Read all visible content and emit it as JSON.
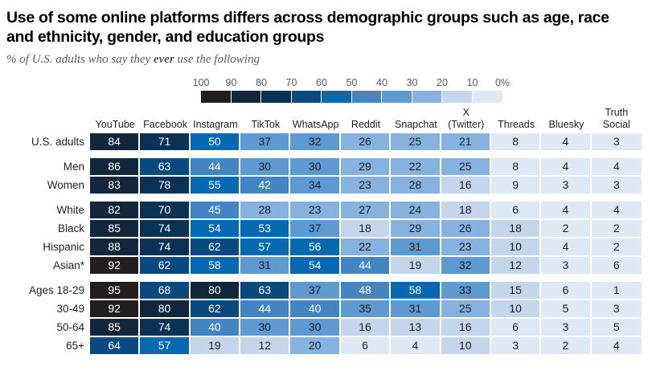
{
  "title": "Use of some online platforms differs across demographic groups such as age, race\nand ethnicity, gender, and education groups",
  "subtitle": {
    "prefix": "% of U.S. adults who say they ",
    "emphasis": "ever",
    "suffix": " use the following"
  },
  "legend": {
    "tick_labels": [
      "100",
      "90",
      "80",
      "70",
      "60",
      "50",
      "40",
      "30",
      "20",
      "10",
      "0%"
    ],
    "colors_high_to_low": [
      "#231f20",
      "#12273c",
      "#0a3254",
      "#084a80",
      "#0569b1",
      "#4285c4",
      "#5e9ad2",
      "#85b2de",
      "#c4d6ec",
      "#dfe9f5"
    ]
  },
  "chart_data": {
    "type": "heatmap",
    "value_unit": "%",
    "value_range": [
      0,
      100
    ],
    "text_white_threshold": 40,
    "cell_text_colors": {
      "light": "#ffffff",
      "dark": "#1f1f1f"
    },
    "columns": [
      "YouTube",
      "Facebook",
      "Instagram",
      "TikTok",
      "WhatsApp",
      "Reddit",
      "Snapchat",
      "X\n(Twitter)",
      "Threads",
      "Bluesky",
      "Truth\nSocial"
    ],
    "rows": [
      {
        "label": "U.S. adults",
        "group_start": false,
        "values": [
          84,
          71,
          50,
          37,
          32,
          26,
          25,
          21,
          8,
          4,
          3
        ]
      },
      {
        "label": "Men",
        "group_start": true,
        "values": [
          86,
          63,
          44,
          30,
          30,
          29,
          22,
          25,
          8,
          4,
          4
        ]
      },
      {
        "label": "Women",
        "group_start": false,
        "values": [
          83,
          78,
          55,
          42,
          34,
          23,
          28,
          16,
          9,
          3,
          3
        ]
      },
      {
        "label": "White",
        "group_start": true,
        "values": [
          82,
          70,
          45,
          28,
          23,
          27,
          24,
          18,
          6,
          4,
          4
        ]
      },
      {
        "label": "Black",
        "group_start": false,
        "values": [
          85,
          74,
          54,
          53,
          37,
          18,
          29,
          26,
          18,
          2,
          2
        ]
      },
      {
        "label": "Hispanic",
        "group_start": false,
        "values": [
          88,
          74,
          62,
          57,
          56,
          22,
          31,
          23,
          10,
          4,
          2
        ]
      },
      {
        "label": "Asian*",
        "group_start": false,
        "values": [
          92,
          62,
          58,
          31,
          54,
          44,
          19,
          32,
          12,
          3,
          6
        ]
      },
      {
        "label": "Ages 18-29",
        "group_start": true,
        "values": [
          95,
          68,
          80,
          63,
          37,
          48,
          58,
          33,
          15,
          6,
          1
        ]
      },
      {
        "label": "30-49",
        "group_start": false,
        "values": [
          92,
          80,
          62,
          44,
          40,
          35,
          31,
          25,
          10,
          5,
          3
        ]
      },
      {
        "label": "50-64",
        "group_start": false,
        "values": [
          85,
          74,
          40,
          30,
          30,
          16,
          13,
          16,
          6,
          3,
          5
        ]
      },
      {
        "label": "65+",
        "group_start": false,
        "values": [
          64,
          57,
          19,
          12,
          20,
          6,
          4,
          10,
          3,
          2,
          4
        ]
      }
    ]
  }
}
